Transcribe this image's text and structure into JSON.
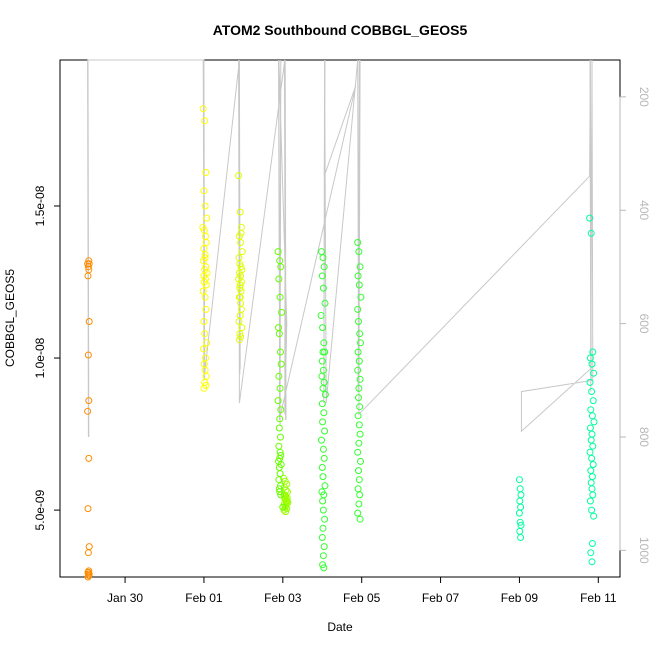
{
  "chart_data": {
    "type": "scatter",
    "title": "ATOM2 Southbound COBBGL_GEOS5",
    "xlabel": "Date",
    "ylabel": "COBBGL_GEOS5",
    "x_ticks": [
      "Jan 30",
      "Feb 01",
      "Feb 03",
      "Feb 05",
      "Feb 07",
      "Feb 09",
      "Feb 11"
    ],
    "x_tick_days": [
      30,
      32,
      34,
      36,
      38,
      40,
      42
    ],
    "xlim_days": [
      28.35,
      42.55
    ],
    "ylim": [
      2.8e-09,
      1.98e-08
    ],
    "y_ticks": [
      5e-09,
      1e-08,
      1.5e-08
    ],
    "y_tick_labels": [
      "5.0e-09",
      "1.0e-08",
      "1.5e-08"
    ],
    "right_axis": {
      "color": "#b8b8b8",
      "ticks": [
        200,
        400,
        600,
        800,
        1000
      ],
      "tick_labels": [
        "200",
        "400",
        "600",
        "800",
        "1000"
      ],
      "range": [
        1047,
        135
      ],
      "direction": "inverted",
      "description": "pressure track (gray line)"
    },
    "grid": false,
    "legend": "none",
    "series": [
      {
        "color": "#ff8c00",
        "x": [
          29.08,
          29.05,
          29.09,
          29.07,
          29.08,
          29.06,
          29.09,
          29.07,
          29.08,
          29.05,
          29.08,
          29.06,
          29.09,
          29.07,
          29.08,
          29.06,
          29.09,
          29.07,
          29.08,
          29.06,
          29.07
        ],
        "y": [
          1.32e-08,
          1.31e-08,
          1.31e-08,
          1.3e-08,
          1.29e-08,
          1.27e-08,
          1.12e-08,
          1.01e-08,
          8.6e-09,
          8.25e-09,
          6.7e-09,
          5.05e-09,
          3.8e-09,
          3.6e-09,
          3e-09,
          2.95e-09,
          2.9e-09,
          2.9e-09,
          2.85e-09,
          2.8e-09,
          2.95e-09
        ]
      },
      {
        "color": "#ffff00",
        "x": [
          31.98,
          32.02,
          32.05,
          32.0,
          32.03,
          32.07,
          31.97,
          32.01,
          32.04,
          32.06,
          32.0,
          32.03,
          31.99,
          32.05,
          32.02,
          32.08,
          32.0,
          32.04,
          32.01,
          32.06,
          31.98,
          32.03,
          32.05,
          32.0,
          32.02,
          32.07,
          31.99,
          32.04,
          32.01,
          32.03,
          32.06,
          32.02,
          32.0,
          32.05,
          32.03
        ],
        "y": [
          1.82e-08,
          1.78e-08,
          1.61e-08,
          1.55e-08,
          1.5e-08,
          1.46e-08,
          1.43e-08,
          1.42e-08,
          1.4e-08,
          1.38e-08,
          1.36e-08,
          1.34e-08,
          1.32e-08,
          1.3e-08,
          1.29e-08,
          1.28e-08,
          1.27e-08,
          1.26e-08,
          1.25e-08,
          1.24e-08,
          1.22e-08,
          1.2e-08,
          1.16e-08,
          1.12e-08,
          1.08e-08,
          1.05e-08,
          1.03e-08,
          1e-08,
          9.8e-09,
          9.6e-09,
          9.4e-09,
          9.2e-09,
          9e-09,
          9.1e-09,
          1.33e-08
        ]
      },
      {
        "color": "#e0ff00",
        "x": [
          32.88,
          32.92,
          32.95,
          32.9,
          32.93,
          32.97,
          32.89,
          32.91,
          32.94,
          32.96,
          32.9,
          32.93,
          32.88,
          32.95,
          32.92,
          32.91,
          32.94,
          32.9,
          32.93,
          32.95,
          32.92,
          32.89,
          32.96,
          32.91,
          32.93,
          32.9,
          32.94,
          32.92
        ],
        "y": [
          1.6e-08,
          1.48e-08,
          1.43e-08,
          1.4e-08,
          1.38e-08,
          1.35e-08,
          1.33e-08,
          1.31e-08,
          1.3e-08,
          1.29e-08,
          1.28e-08,
          1.27e-08,
          1.26e-08,
          1.25e-08,
          1.24e-08,
          1.23e-08,
          1.22e-08,
          1.2e-08,
          1.18e-08,
          1.16e-08,
          1.14e-08,
          1.12e-08,
          1.1e-08,
          1.08e-08,
          1.07e-08,
          1.06e-08,
          1.41e-08,
          1.2e-08
        ]
      },
      {
        "color": "#9cff00",
        "x": [
          34.02,
          34.06,
          34.1,
          34.04,
          34.08,
          34.12,
          34.03,
          34.07,
          34.11,
          34.05,
          34.09,
          34.13,
          34.04,
          34.08,
          34.06,
          34.1,
          34.03,
          34.07,
          34.11,
          34.05,
          34.09,
          34.06
        ],
        "y": [
          6.05e-09,
          5.95e-09,
          5.85e-09,
          5.75e-09,
          5.65e-09,
          5.6e-09,
          5.5e-09,
          5.45e-09,
          5.4e-09,
          5.35e-09,
          5.3e-09,
          5.25e-09,
          5.2e-09,
          5.15e-09,
          5.1e-09,
          5.05e-09,
          5e-09,
          4.95e-09,
          5.3e-09,
          5.5e-09,
          5.2e-09,
          5.4e-09
        ]
      },
      {
        "color": "#66ff00",
        "x": [
          33.88,
          33.92,
          33.95,
          33.9,
          33.93,
          33.97,
          33.89,
          33.91,
          33.94,
          33.96,
          33.9,
          33.93,
          33.88,
          33.95,
          33.92,
          33.91,
          33.94,
          33.9,
          33.93,
          33.95,
          33.92,
          33.89,
          33.96,
          33.91,
          33.93,
          33.9,
          33.94,
          33.92,
          33.95,
          33.91,
          34.0
        ],
        "y": [
          1.35e-08,
          1.32e-08,
          1.3e-08,
          1.26e-08,
          1.2e-08,
          1.15e-08,
          1.1e-08,
          1.08e-08,
          1.02e-08,
          9.8e-09,
          9.4e-09,
          9e-09,
          8.6e-09,
          8.3e-09,
          8e-09,
          7.7e-09,
          7.4e-09,
          7.1e-09,
          6.9e-09,
          6.8e-09,
          6.7e-09,
          6.6e-09,
          6.5e-09,
          6.4e-09,
          6.2e-09,
          6e-09,
          5.8e-09,
          5.6e-09,
          5.5e-09,
          5.7e-09,
          5.1e-09
        ]
      },
      {
        "color": "#33ff30",
        "x": [
          34.98,
          35.02,
          35.05,
          35.0,
          35.03,
          35.07,
          34.97,
          35.01,
          35.04,
          35.06,
          35.0,
          35.03,
          34.99,
          35.05,
          35.02,
          35.08,
          35.0,
          35.04,
          35.01,
          35.06,
          34.98,
          35.03,
          35.05,
          35.0,
          35.02,
          35.07,
          34.99,
          35.04,
          35.01,
          35.03,
          35.06,
          35.02,
          35.0,
          35.05,
          35.03,
          35.01,
          35.04,
          35.02
        ],
        "y": [
          1.35e-08,
          1.33e-08,
          1.3e-08,
          1.27e-08,
          1.23e-08,
          1.18e-08,
          1.14e-08,
          1.1e-08,
          1.05e-08,
          1.02e-08,
          9.9e-09,
          9.6e-09,
          9.4e-09,
          9.2e-09,
          9e-09,
          8.8e-09,
          8.5e-09,
          8.2e-09,
          7.9e-09,
          7.6e-09,
          7.3e-09,
          7e-09,
          6.7e-09,
          6.4e-09,
          6.1e-09,
          5.8e-09,
          5.6e-09,
          5.5e-09,
          5.3e-09,
          5e-09,
          4.7e-09,
          4.4e-09,
          4.1e-09,
          3.8e-09,
          3.5e-09,
          3.2e-09,
          3.1e-09,
          1.02e-08
        ]
      },
      {
        "color": "#33ff30",
        "x": [
          35.9,
          35.93,
          35.96,
          35.91,
          35.94,
          35.98,
          35.9,
          35.92,
          35.95,
          35.97,
          35.91,
          35.94,
          35.9,
          35.96,
          35.93,
          35.92,
          35.95,
          35.91,
          35.94,
          35.96,
          35.93,
          35.9,
          35.97,
          35.92,
          35.94,
          35.91,
          35.95,
          35.93,
          35.9,
          35.96
        ],
        "y": [
          1.38e-08,
          1.35e-08,
          1.3e-08,
          1.27e-08,
          1.24e-08,
          1.2e-08,
          1.16e-08,
          1.12e-08,
          1.08e-08,
          1.05e-08,
          1.02e-08,
          9.9e-09,
          9.6e-09,
          9.3e-09,
          9e-09,
          8.7e-09,
          8.4e-09,
          8.1e-09,
          7.8e-09,
          7.5e-09,
          7.2e-09,
          6.9e-09,
          6.6e-09,
          6.3e-09,
          6e-09,
          5.7e-09,
          5.5e-09,
          5.2e-09,
          4.9e-09,
          4.7e-09
        ]
      },
      {
        "color": "#00ffa0",
        "x": [
          40.0,
          40.02,
          40.04,
          40.01,
          40.03,
          40.0,
          40.02,
          40.04,
          40.01,
          40.03
        ],
        "y": [
          6e-09,
          5.7e-09,
          5.5e-09,
          5.3e-09,
          5.1e-09,
          4.9e-09,
          4.6e-09,
          4.5e-09,
          4.3e-09,
          4.1e-09
        ]
      },
      {
        "color": "#00ffa0",
        "x": [
          41.78,
          41.82,
          41.86,
          41.8,
          41.84,
          41.88,
          41.79,
          41.83,
          41.87,
          41.81,
          41.85,
          41.89,
          41.8,
          41.84,
          41.82,
          41.86,
          41.79,
          41.83,
          41.87,
          41.81,
          41.85,
          41.82,
          41.84,
          41.86,
          41.8,
          41.83,
          41.88,
          41.85,
          41.81,
          41.84
        ],
        "y": [
          1.46e-08,
          1.41e-08,
          1.02e-08,
          1e-08,
          9.8e-09,
          9.5e-09,
          9.2e-09,
          8.9e-09,
          8.6e-09,
          8.3e-09,
          8.1e-09,
          7.9e-09,
          7.7e-09,
          7.5e-09,
          7.3e-09,
          7.1e-09,
          6.9e-09,
          6.7e-09,
          6.5e-09,
          6.3e-09,
          6.1e-09,
          5.9e-09,
          5.7e-09,
          5.5e-09,
          5.3e-09,
          5e-09,
          4.8e-09,
          3.9e-09,
          3.6e-09,
          3.3e-09
        ]
      }
    ],
    "pressure_track": {
      "color": "#c8c8c8",
      "x": [
        29.05,
        29.07,
        29.05,
        29.08,
        29.06,
        32.0,
        32.02,
        31.98,
        32.01,
        31.99,
        32.0,
        32.9,
        32.92,
        32.89,
        32.91,
        32.88,
        32.9,
        34.05,
        34.07,
        34.04,
        34.08,
        34.06,
        34.05,
        34.1,
        33.9,
        33.92,
        33.89,
        33.93,
        33.95,
        33.91,
        35.85,
        35.05,
        35.07,
        35.04,
        35.06,
        35.1,
        35.9,
        35.92,
        35.94,
        35.91,
        35.96,
        35.93,
        41.78,
        41.8,
        41.82,
        41.79,
        41.81,
        41.84,
        41.86,
        40.05,
        40.05,
        41.8
      ],
      "y": [
        135,
        800,
        135,
        800,
        135,
        135,
        700,
        135,
        680,
        135,
        700,
        135,
        680,
        135,
        690,
        135,
        740,
        135,
        770,
        135,
        770,
        135,
        760,
        600,
        135,
        760,
        135,
        780,
        135,
        770,
        180,
        340,
        135,
        740,
        135,
        740,
        135,
        680,
        135,
        720,
        135,
        760,
        340,
        135,
        700,
        135,
        720,
        135,
        700,
        720,
        790,
        680
      ]
    }
  }
}
